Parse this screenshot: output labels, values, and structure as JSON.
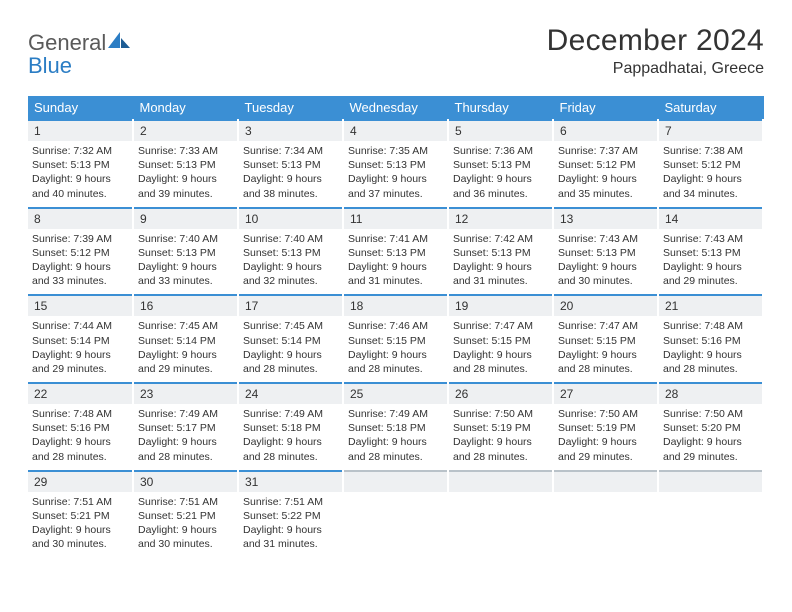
{
  "brand": {
    "name1": "General",
    "name2": "Blue"
  },
  "title": "December 2024",
  "location": "Pappadhatai, Greece",
  "colors": {
    "header_bg": "#3b8fd4",
    "header_text": "#ffffff",
    "daynum_bg": "#eef0f2",
    "border_accent": "#3b8fd4",
    "body_bg": "#ffffff",
    "text": "#333333"
  },
  "weekdays": [
    "Sunday",
    "Monday",
    "Tuesday",
    "Wednesday",
    "Thursday",
    "Friday",
    "Saturday"
  ],
  "weeks": [
    [
      {
        "n": "1",
        "sr": "7:32 AM",
        "ss": "5:13 PM",
        "dl": "9 hours and 40 minutes."
      },
      {
        "n": "2",
        "sr": "7:33 AM",
        "ss": "5:13 PM",
        "dl": "9 hours and 39 minutes."
      },
      {
        "n": "3",
        "sr": "7:34 AM",
        "ss": "5:13 PM",
        "dl": "9 hours and 38 minutes."
      },
      {
        "n": "4",
        "sr": "7:35 AM",
        "ss": "5:13 PM",
        "dl": "9 hours and 37 minutes."
      },
      {
        "n": "5",
        "sr": "7:36 AM",
        "ss": "5:13 PM",
        "dl": "9 hours and 36 minutes."
      },
      {
        "n": "6",
        "sr": "7:37 AM",
        "ss": "5:12 PM",
        "dl": "9 hours and 35 minutes."
      },
      {
        "n": "7",
        "sr": "7:38 AM",
        "ss": "5:12 PM",
        "dl": "9 hours and 34 minutes."
      }
    ],
    [
      {
        "n": "8",
        "sr": "7:39 AM",
        "ss": "5:12 PM",
        "dl": "9 hours and 33 minutes."
      },
      {
        "n": "9",
        "sr": "7:40 AM",
        "ss": "5:13 PM",
        "dl": "9 hours and 33 minutes."
      },
      {
        "n": "10",
        "sr": "7:40 AM",
        "ss": "5:13 PM",
        "dl": "9 hours and 32 minutes."
      },
      {
        "n": "11",
        "sr": "7:41 AM",
        "ss": "5:13 PM",
        "dl": "9 hours and 31 minutes."
      },
      {
        "n": "12",
        "sr": "7:42 AM",
        "ss": "5:13 PM",
        "dl": "9 hours and 31 minutes."
      },
      {
        "n": "13",
        "sr": "7:43 AM",
        "ss": "5:13 PM",
        "dl": "9 hours and 30 minutes."
      },
      {
        "n": "14",
        "sr": "7:43 AM",
        "ss": "5:13 PM",
        "dl": "9 hours and 29 minutes."
      }
    ],
    [
      {
        "n": "15",
        "sr": "7:44 AM",
        "ss": "5:14 PM",
        "dl": "9 hours and 29 minutes."
      },
      {
        "n": "16",
        "sr": "7:45 AM",
        "ss": "5:14 PM",
        "dl": "9 hours and 29 minutes."
      },
      {
        "n": "17",
        "sr": "7:45 AM",
        "ss": "5:14 PM",
        "dl": "9 hours and 28 minutes."
      },
      {
        "n": "18",
        "sr": "7:46 AM",
        "ss": "5:15 PM",
        "dl": "9 hours and 28 minutes."
      },
      {
        "n": "19",
        "sr": "7:47 AM",
        "ss": "5:15 PM",
        "dl": "9 hours and 28 minutes."
      },
      {
        "n": "20",
        "sr": "7:47 AM",
        "ss": "5:15 PM",
        "dl": "9 hours and 28 minutes."
      },
      {
        "n": "21",
        "sr": "7:48 AM",
        "ss": "5:16 PM",
        "dl": "9 hours and 28 minutes."
      }
    ],
    [
      {
        "n": "22",
        "sr": "7:48 AM",
        "ss": "5:16 PM",
        "dl": "9 hours and 28 minutes."
      },
      {
        "n": "23",
        "sr": "7:49 AM",
        "ss": "5:17 PM",
        "dl": "9 hours and 28 minutes."
      },
      {
        "n": "24",
        "sr": "7:49 AM",
        "ss": "5:18 PM",
        "dl": "9 hours and 28 minutes."
      },
      {
        "n": "25",
        "sr": "7:49 AM",
        "ss": "5:18 PM",
        "dl": "9 hours and 28 minutes."
      },
      {
        "n": "26",
        "sr": "7:50 AM",
        "ss": "5:19 PM",
        "dl": "9 hours and 28 minutes."
      },
      {
        "n": "27",
        "sr": "7:50 AM",
        "ss": "5:19 PM",
        "dl": "9 hours and 29 minutes."
      },
      {
        "n": "28",
        "sr": "7:50 AM",
        "ss": "5:20 PM",
        "dl": "9 hours and 29 minutes."
      }
    ],
    [
      {
        "n": "29",
        "sr": "7:51 AM",
        "ss": "5:21 PM",
        "dl": "9 hours and 30 minutes."
      },
      {
        "n": "30",
        "sr": "7:51 AM",
        "ss": "5:21 PM",
        "dl": "9 hours and 30 minutes."
      },
      {
        "n": "31",
        "sr": "7:51 AM",
        "ss": "5:22 PM",
        "dl": "9 hours and 31 minutes."
      },
      null,
      null,
      null,
      null
    ]
  ],
  "labels": {
    "sunrise": "Sunrise:",
    "sunset": "Sunset:",
    "daylight": "Daylight:"
  }
}
